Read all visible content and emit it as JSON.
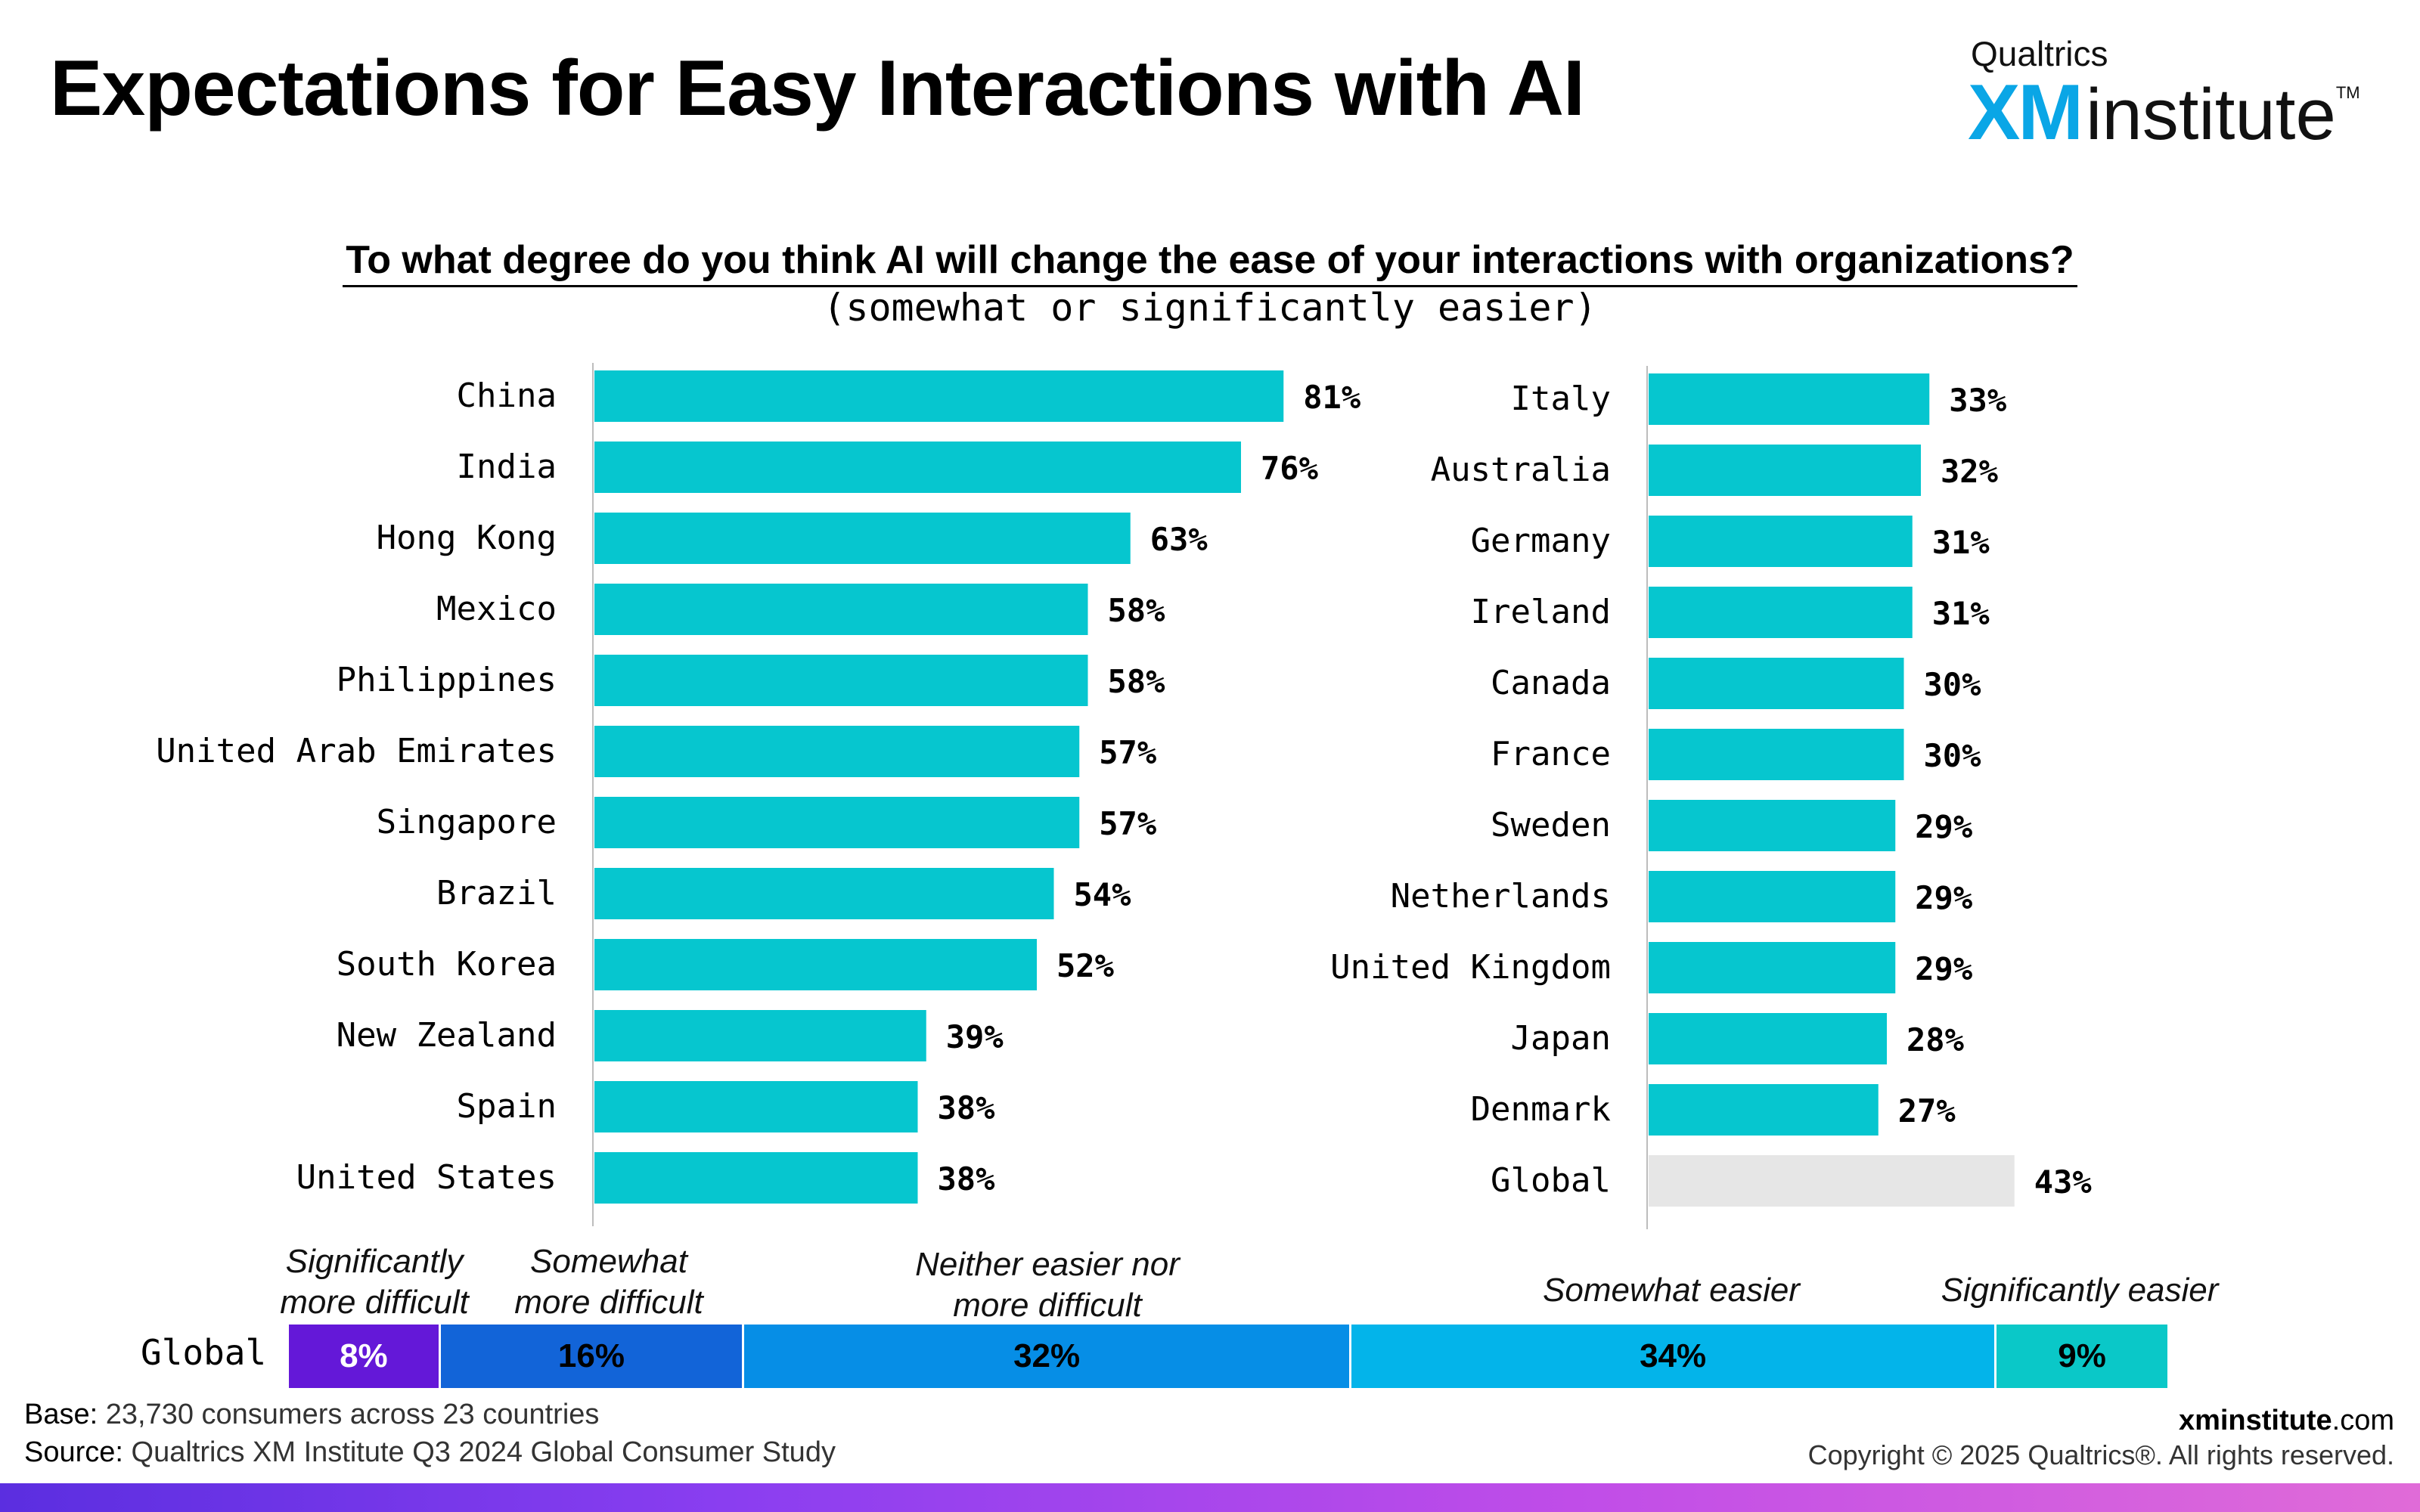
{
  "title": "Expectations for Easy Interactions with AI",
  "logo": {
    "top": "Qualtrics",
    "xm": "XM",
    "institute": "institute",
    "tm": "TM"
  },
  "question": "To what degree do you think AI will change the ease of your interactions with organizations?",
  "question_sub": "(somewhat or significantly easier)",
  "colors": {
    "bar": "#06c6cf",
    "global_bar": "#e6e6e6"
  },
  "chart_data": [
    {
      "type": "bar",
      "orientation": "horizontal",
      "categories": [
        "China",
        "India",
        "Hong Kong",
        "Mexico",
        "Philippines",
        "United Arab Emirates",
        "Singapore",
        "Brazil",
        "South Korea",
        "New Zealand",
        "Spain",
        "United States"
      ],
      "values": [
        81,
        76,
        63,
        58,
        58,
        57,
        57,
        54,
        52,
        39,
        38,
        38
      ],
      "value_labels": [
        "81%",
        "76%",
        "63%",
        "58%",
        "58%",
        "57%",
        "57%",
        "54%",
        "52%",
        "39%",
        "38%",
        "38%"
      ],
      "xlim": [
        0,
        100
      ]
    },
    {
      "type": "bar",
      "orientation": "horizontal",
      "categories": [
        "Italy",
        "Australia",
        "Germany",
        "Ireland",
        "Canada",
        "France",
        "Sweden",
        "Netherlands",
        "United Kingdom",
        "Japan",
        "Denmark",
        "Global"
      ],
      "values": [
        33,
        32,
        31,
        31,
        30,
        30,
        29,
        29,
        29,
        28,
        27,
        43
      ],
      "value_labels": [
        "33%",
        "32%",
        "31%",
        "31%",
        "30%",
        "30%",
        "29%",
        "29%",
        "29%",
        "28%",
        "27%",
        "43%"
      ],
      "xlim": [
        0,
        100
      ]
    },
    {
      "type": "bar",
      "orientation": "stacked-horizontal",
      "row_label": "Global",
      "segments": [
        {
          "name": "Significantly more difficult",
          "value": 8,
          "label": "8%",
          "color": "#6418d8"
        },
        {
          "name": "Somewhat more difficult",
          "value": 16,
          "label": "16%",
          "color": "#1264d8"
        },
        {
          "name": "Neither easier nor more difficult",
          "value": 32,
          "label": "32%",
          "color": "#068ee6"
        },
        {
          "name": "Somewhat easier",
          "value": 34,
          "label": "34%",
          "color": "#03b4ea"
        },
        {
          "name": "Significantly easier",
          "value": 9,
          "label": "9%",
          "color": "#0ac8c8"
        }
      ]
    }
  ],
  "dist_labels": {
    "sig_difficult": [
      "Significantly",
      "more difficult"
    ],
    "some_difficult": [
      "Somewhat",
      "more difficult"
    ],
    "neither": [
      "Neither easier nor",
      "more difficult"
    ],
    "some_easier": [
      "Somewhat easier"
    ],
    "sig_easier": [
      "Significantly easier"
    ]
  },
  "footer": {
    "base_key": "Base:",
    "base_text": " 23,730 consumers across 23 countries",
    "source_key": "Source:",
    "source_text": " Qualtrics XM Institute Q3 2024 Global Consumer Study",
    "site_bold": "xminstitute",
    "site_domain": ".com",
    "copyright": "Copyright © 2025 Qualtrics®. All rights reserved."
  }
}
